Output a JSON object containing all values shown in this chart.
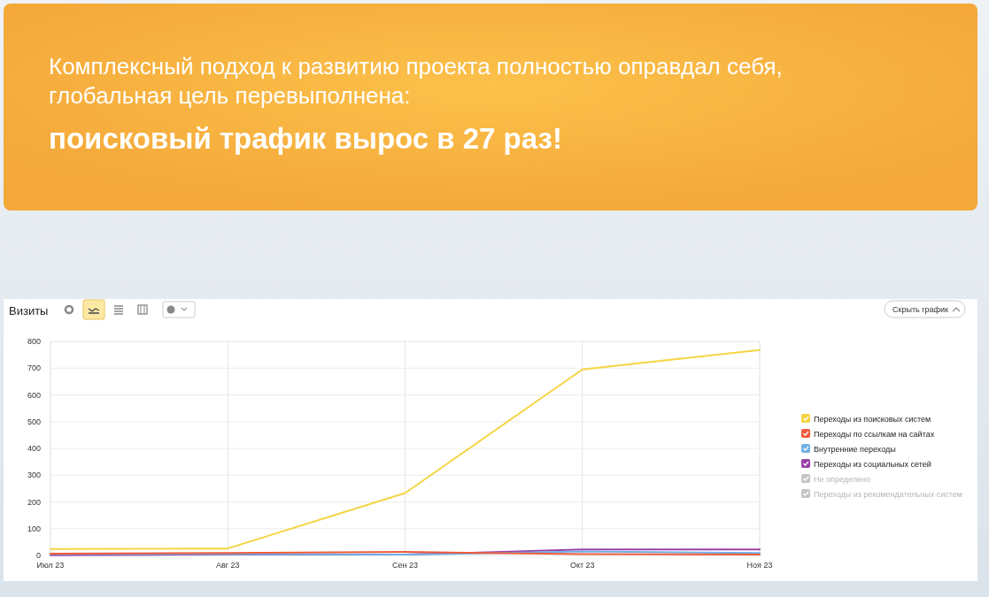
{
  "chart_data": {
    "type": "line",
    "title": "Комплексный подход к развитию проекта полностью оправдал себя, глобальная цель перевыполнена:",
    "subtitle": "поисковый трафик вырос в 27 раз!",
    "annotations": [
      "Визиты",
      "Скрыть график"
    ],
    "categories": [
      "Июл 23",
      "Авг 23",
      "Сен 23",
      "Окт 23",
      "Ноя 23"
    ],
    "series": [
      {
        "name": "Переходы из поисковых систем",
        "color": "#f5d443",
        "values": [
          24,
          26,
          233,
          695,
          768
        ]
      },
      {
        "name": "Переходы по ссылкам на сайтах",
        "color": "#ef5a3c",
        "values": [
          7,
          9,
          13,
          5,
          3
        ]
      },
      {
        "name": "Внутренние переходы",
        "color": "#6fb1e4",
        "values": [
          5,
          5,
          3,
          15,
          9
        ]
      },
      {
        "name": "Переходы из социальных сетей",
        "color": "#9a3fa8",
        "values": [
          1,
          3,
          3,
          22,
          22
        ]
      },
      {
        "name": "Не определено",
        "color": "#c4c4c4",
        "values": [
          null,
          null,
          null,
          null,
          null
        ]
      },
      {
        "name": "Переходы из рекомендательных систем",
        "color": "#c4c4c4",
        "values": [
          null,
          null,
          null,
          null,
          null
        ]
      }
    ],
    "ylim": [
      0,
      800
    ],
    "yticks": [
      0,
      100,
      200,
      300,
      400,
      500,
      600,
      700,
      800
    ],
    "grid": true,
    "legend": "right",
    "marker": "none",
    "line_style": "solid"
  }
}
